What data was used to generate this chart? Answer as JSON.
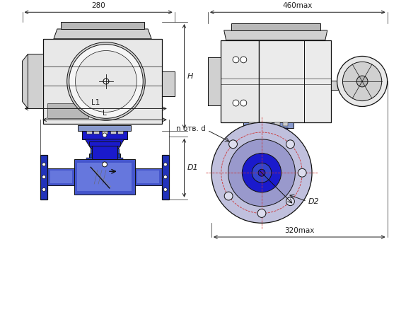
{
  "background_color": "#ffffff",
  "line_color": "#111111",
  "blue_dark": "#1a1acc",
  "blue_med": "#3344cc",
  "blue_light": "#aaaaee",
  "blue_flange": "#2233bb",
  "blue_body": "#4455cc",
  "blue_grad": "#6677dd",
  "gray1": "#e8e8e8",
  "gray2": "#d0d0d0",
  "gray3": "#b8b8b8",
  "dim_color": "#222222",
  "dim_280": "280",
  "dim_460": "460max",
  "dim_H": "H",
  "dim_D1": "D1",
  "dim_L": "L",
  "dim_L1": "L1",
  "dim_320": "320max",
  "dim_D2": "D2",
  "dim_n": "n отв. d"
}
